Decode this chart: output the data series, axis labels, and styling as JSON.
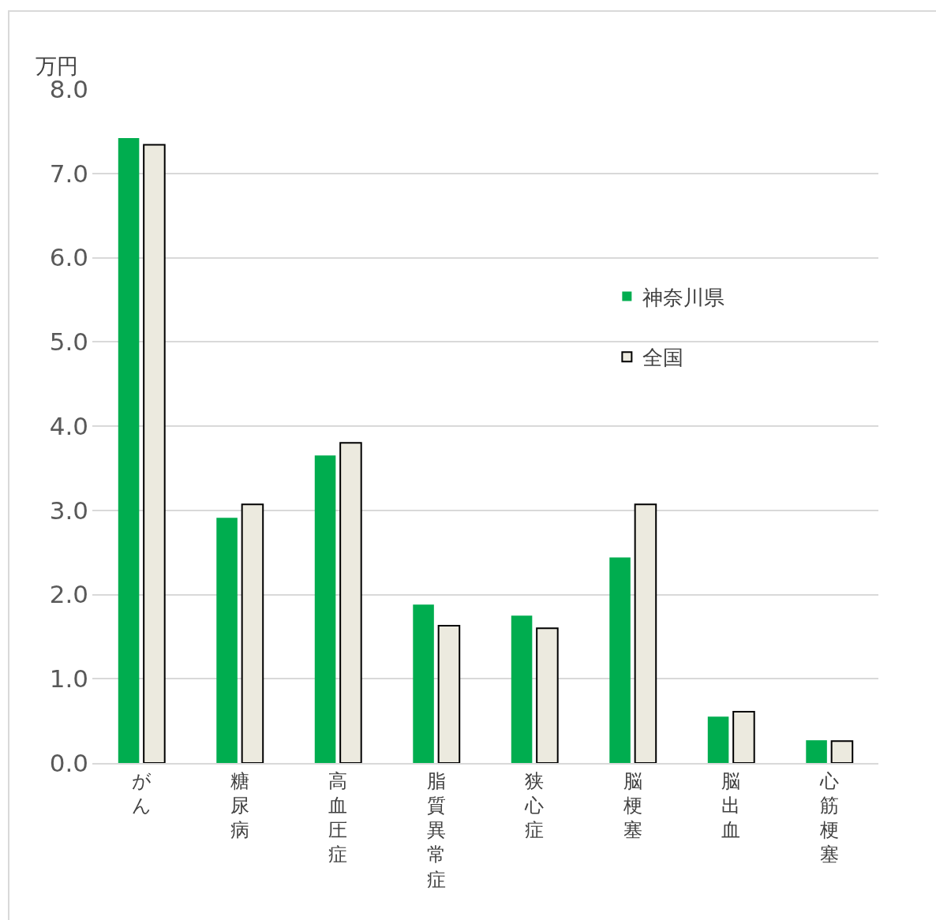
{
  "chart_data": {
    "type": "bar",
    "ylabel": "万円",
    "categories": [
      "がん",
      "糖尿病",
      "高血圧症",
      "脂質異常症",
      "狭心症",
      "脳梗塞",
      "脳出血",
      "心筋梗塞"
    ],
    "series": [
      {
        "name": "神奈川県",
        "color": "#00ad4f",
        "values": [
          7.42,
          2.91,
          3.65,
          1.88,
          1.75,
          2.44,
          0.55,
          0.27
        ]
      },
      {
        "name": "全国",
        "color": "#eceadf",
        "values": [
          7.34,
          3.07,
          3.8,
          1.63,
          1.6,
          3.07,
          0.61,
          0.26
        ]
      }
    ],
    "ylim": [
      0,
      8
    ],
    "yticks": [
      {
        "value": 0,
        "label": "0.0"
      },
      {
        "value": 1,
        "label": "1.0"
      },
      {
        "value": 2,
        "label": "2.0"
      },
      {
        "value": 3,
        "label": "3.0"
      },
      {
        "value": 4,
        "label": "4.0"
      },
      {
        "value": 5,
        "label": "5.0"
      },
      {
        "value": 6,
        "label": "6.0"
      },
      {
        "value": 7,
        "label": "7.0"
      },
      {
        "value": 8,
        "label": "8.0"
      }
    ],
    "grid": "y",
    "legend": "right"
  }
}
